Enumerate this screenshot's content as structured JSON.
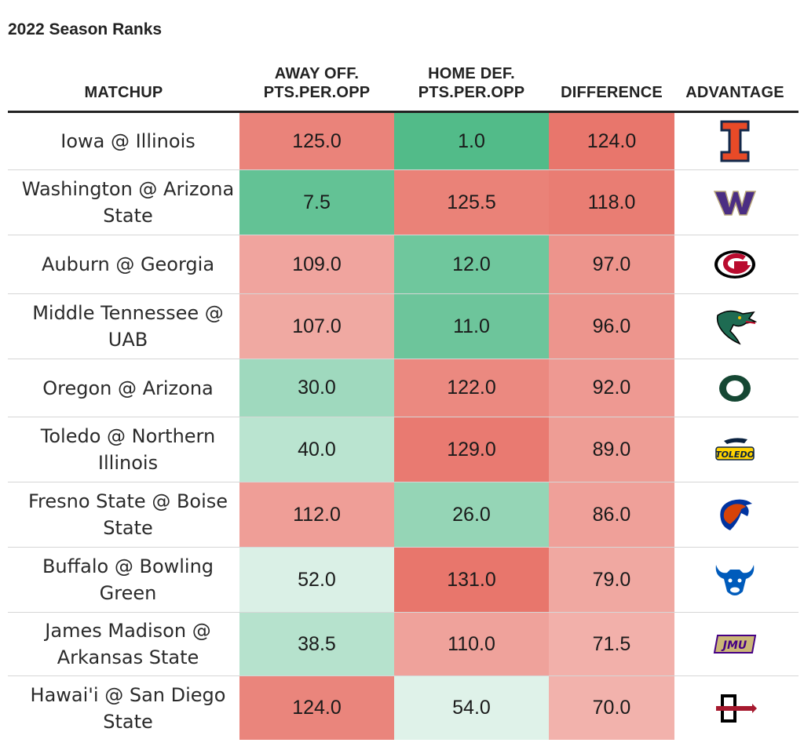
{
  "chart_data": {
    "type": "table",
    "title": "2022 Season Ranks",
    "columns": [
      "MATCHUP",
      "AWAY OFF.\nPTS.PER.OPP",
      "HOME DEF.\nPTS.PER.OPP",
      "DIFFERENCE",
      "ADVANTAGE"
    ],
    "rows": [
      {
        "matchup": "Iowa @ Illinois",
        "away_off": "125.0",
        "home_def": "1.0",
        "difference": "124.0",
        "advantage": "illinois-logo-icon"
      },
      {
        "matchup": "Washington @ Arizona State",
        "away_off": "7.5",
        "home_def": "125.5",
        "difference": "118.0",
        "advantage": "washington-logo-icon"
      },
      {
        "matchup": "Auburn @ Georgia",
        "away_off": "109.0",
        "home_def": "12.0",
        "difference": "97.0",
        "advantage": "georgia-logo-icon"
      },
      {
        "matchup": "Middle Tennessee @ UAB",
        "away_off": "107.0",
        "home_def": "11.0",
        "difference": "96.0",
        "advantage": "uab-logo-icon"
      },
      {
        "matchup": "Oregon @ Arizona",
        "away_off": "30.0",
        "home_def": "122.0",
        "difference": "92.0",
        "advantage": "oregon-logo-icon"
      },
      {
        "matchup": "Toledo @ Northern Illinois",
        "away_off": "40.0",
        "home_def": "129.0",
        "difference": "89.0",
        "advantage": "toledo-logo-icon"
      },
      {
        "matchup": "Fresno State @ Boise State",
        "away_off": "112.0",
        "home_def": "26.0",
        "difference": "86.0",
        "advantage": "boise-state-logo-icon"
      },
      {
        "matchup": "Buffalo @ Bowling Green",
        "away_off": "52.0",
        "home_def": "131.0",
        "difference": "79.0",
        "advantage": "buffalo-logo-icon"
      },
      {
        "matchup": "James Madison @ Arkansas State",
        "away_off": "38.5",
        "home_def": "110.0",
        "difference": "71.5",
        "advantage": "jmu-logo-icon"
      },
      {
        "matchup": "Hawai'i @ San Diego State",
        "away_off": "124.0",
        "home_def": "54.0",
        "difference": "70.0",
        "advantage": "san-diego-state-logo-icon"
      }
    ],
    "color_scale": {
      "low": "#52bb89",
      "mid": "#ffffff",
      "high": "#e8766c"
    }
  }
}
